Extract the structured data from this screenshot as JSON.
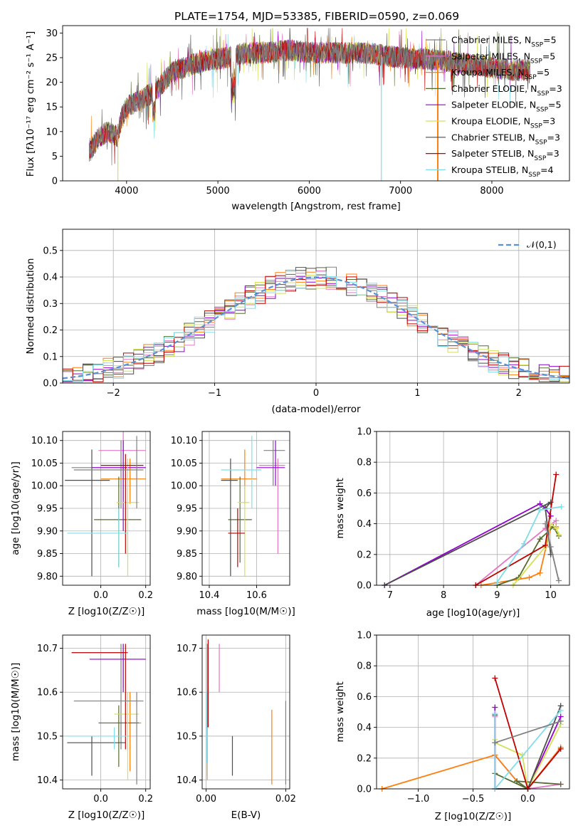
{
  "figure_title": "PLATE=1754, MJD=53385, FIBERID=0590, z=0.069",
  "colors": [
    "#808080",
    "#e377c2",
    "#ff7f0e",
    "#556b2f",
    "#9400d3",
    "#d4e157",
    "#4d4d4d",
    "#c00000",
    "#80deea"
  ],
  "series_names": [
    "Chabrier MILES, N_SSP=5",
    "Salpeter MILES, N_SSP=5",
    "Kroupa MILES, N_SSP=5",
    "Chabrier ELODIE, N_SSP=3",
    "Salpeter ELODIE, N_SSP=5",
    "Kroupa ELODIE, N_SSP=3",
    "Chabrier STELIB, N_SSP=3",
    "Salpeter STELIB, N_SSP=3",
    "Kroupa STELIB, N_SSP=4"
  ],
  "chart_data": [
    {
      "id": "spectrum",
      "type": "line",
      "title": "PLATE=1754, MJD=53385, FIBERID=0590, z=0.069",
      "xlabel": "wavelength [Angstrom, rest frame]",
      "ylabel": "Flux [fλ10⁻¹⁷ erg cm⁻² s⁻¹ A⁻¹]",
      "xlim": [
        3300,
        8850
      ],
      "ylim": [
        0,
        31.5
      ],
      "xticks": [
        4000,
        5000,
        6000,
        7000,
        8000
      ],
      "yticks": [
        0,
        5,
        10,
        15,
        20,
        25,
        30
      ],
      "legend_position": "top-right",
      "legend": [
        {
          "base": "Chabrier MILES, N",
          "sub": "SSP",
          "tail": "=5"
        },
        {
          "base": "Salpeter MILES, N",
          "sub": "SSP",
          "tail": "=5"
        },
        {
          "base": "Kroupa MILES, N",
          "sub": "SSP",
          "tail": "=5"
        },
        {
          "base": "Chabrier ELODIE, N",
          "sub": "SSP",
          "tail": "=3"
        },
        {
          "base": "Salpeter ELODIE, N",
          "sub": "SSP",
          "tail": "=5"
        },
        {
          "base": "Kroupa ELODIE, N",
          "sub": "SSP",
          "tail": "=3"
        },
        {
          "base": "Chabrier STELIB, N",
          "sub": "SSP",
          "tail": "=3"
        },
        {
          "base": "Salpeter STELIB, N",
          "sub": "SSP",
          "tail": "=3"
        },
        {
          "base": "Kroupa STELIB, N",
          "sub": "SSP",
          "tail": "=4"
        }
      ],
      "continuum": [
        [
          3600,
          6
        ],
        [
          3700,
          9
        ],
        [
          3800,
          10
        ],
        [
          3900,
          9
        ],
        [
          3950,
          13
        ],
        [
          4000,
          15
        ],
        [
          4100,
          16
        ],
        [
          4200,
          17
        ],
        [
          4300,
          18
        ],
        [
          4400,
          20
        ],
        [
          4500,
          22
        ],
        [
          4700,
          23.5
        ],
        [
          4900,
          24.5
        ],
        [
          5100,
          25
        ],
        [
          5300,
          26
        ],
        [
          5500,
          26
        ],
        [
          5800,
          26.5
        ],
        [
          6000,
          26
        ],
        [
          6300,
          26
        ],
        [
          6600,
          26
        ],
        [
          6800,
          25.5
        ],
        [
          7000,
          25
        ],
        [
          7400,
          24.5
        ],
        [
          7800,
          23.5
        ],
        [
          8200,
          22.5
        ],
        [
          8400,
          22.5
        ]
      ]
    },
    {
      "id": "residuals",
      "type": "bar",
      "xlabel": "(data-model)/error",
      "ylabel": "Normed distribution",
      "xlim": [
        -2.5,
        2.5
      ],
      "ylim": [
        0,
        0.58
      ],
      "xticks": [
        -2,
        -1,
        0,
        1,
        2
      ],
      "yticks": [
        0.0,
        0.1,
        0.2,
        0.3,
        0.4,
        0.5
      ],
      "legend": "𝒩(0,1)",
      "legend_position": "top-right",
      "overlay": "gaussian N(0,1)"
    },
    {
      "id": "age_vs_Z",
      "type": "scatter",
      "xlabel": "Z [log10(Z/Z☉)]",
      "ylabel": "age  [log10(age/yr)]",
      "xlim": [
        -0.17,
        0.22
      ],
      "ylim": [
        9.78,
        10.12
      ],
      "xticks": [
        0.0,
        0.2
      ],
      "yticks": [
        9.8,
        9.85,
        9.9,
        9.95,
        10.0,
        10.05,
        10.1
      ],
      "points": [
        {
          "x": 0.09,
          "y": 10.04,
          "xlo": -0.13,
          "xhi": 0.2,
          "ylo": 9.95,
          "yhi": 10.1
        },
        {
          "x": 0.1,
          "y": 10.078,
          "xlo": -0.01,
          "xhi": 0.2,
          "ylo": 9.97,
          "yhi": 10.12
        },
        {
          "x": 0.13,
          "y": 10.015,
          "xlo": 0.0,
          "xhi": 0.2,
          "ylo": 9.96,
          "yhi": 10.06
        },
        {
          "x": 0.08,
          "y": 9.925,
          "xlo": -0.03,
          "xhi": 0.18,
          "ylo": 9.82,
          "yhi": 10.02
        },
        {
          "x": 0.1,
          "y": 10.04,
          "xlo": -0.04,
          "xhi": 0.2,
          "ylo": 9.9,
          "yhi": 10.1
        },
        {
          "x": 0.12,
          "y": 9.963,
          "xlo": 0.07,
          "xhi": 0.17,
          "ylo": 9.8,
          "yhi": 10.06
        },
        {
          "x": -0.04,
          "y": 10.012,
          "xlo": -0.16,
          "xhi": 0.04,
          "ylo": 9.8,
          "yhi": 10.08
        },
        {
          "x": 0.11,
          "y": 10.045,
          "xlo": 0.0,
          "xhi": 0.19,
          "ylo": 9.85,
          "yhi": 10.07
        },
        {
          "x": 0.08,
          "y": 9.895,
          "xlo": -0.15,
          "xhi": 0.12,
          "ylo": 9.82,
          "yhi": 9.95
        },
        {
          "x": 0.16,
          "y": 10.035,
          "xlo": -0.12,
          "xhi": 0.19,
          "ylo": 9.95,
          "yhi": 10.11
        }
      ]
    },
    {
      "id": "age_vs_mass",
      "type": "scatter",
      "xlabel": "mass [log10(M/M☉)]",
      "ylabel": "",
      "xlim": [
        10.37,
        10.74
      ],
      "ylim": [
        9.78,
        10.12
      ],
      "xticks": [
        10.4,
        10.6
      ],
      "yticks": [
        9.8,
        9.85,
        9.9,
        9.95,
        10.0,
        10.05,
        10.1
      ],
      "points": [
        {
          "x": 10.67,
          "y": 10.078,
          "xlo": 10.63,
          "xhi": 10.72,
          "ylo": 10.0,
          "yhi": 10.1
        },
        {
          "x": 10.69,
          "y": 10.045,
          "xlo": 10.61,
          "xhi": 10.72,
          "ylo": 9.85,
          "yhi": 10.06
        },
        {
          "x": 10.55,
          "y": 10.015,
          "xlo": 10.45,
          "xhi": 10.6,
          "ylo": 9.96,
          "yhi": 10.08
        },
        {
          "x": 10.53,
          "y": 9.925,
          "xlo": 10.48,
          "xhi": 10.58,
          "ylo": 9.83,
          "yhi": 10.02
        },
        {
          "x": 10.68,
          "y": 10.04,
          "xlo": 10.6,
          "xhi": 10.72,
          "ylo": 10.0,
          "yhi": 10.1
        },
        {
          "x": 10.55,
          "y": 9.963,
          "xlo": 10.52,
          "xhi": 10.57,
          "ylo": 9.8,
          "yhi": 10.0
        },
        {
          "x": 10.49,
          "y": 10.012,
          "xlo": 10.45,
          "xhi": 10.52,
          "ylo": 9.8,
          "yhi": 10.06
        },
        {
          "x": 10.52,
          "y": 9.895,
          "xlo": 10.48,
          "xhi": 10.55,
          "ylo": 9.82,
          "yhi": 9.95
        },
        {
          "x": 10.58,
          "y": 10.035,
          "xlo": 10.45,
          "xhi": 10.62,
          "ylo": 9.95,
          "yhi": 10.11
        }
      ]
    },
    {
      "id": "weight_vs_age",
      "type": "line",
      "xlabel": "age  [log10(age/yr)]",
      "ylabel": "mass weight",
      "xlim": [
        6.75,
        10.35
      ],
      "ylim": [
        0,
        1.0
      ],
      "xticks": [
        7,
        8,
        9,
        10
      ],
      "yticks": [
        0.0,
        0.2,
        0.4,
        0.6,
        0.8,
        1.0
      ],
      "series": [
        {
          "name": "",
          "x": [
            8.6,
            9.9,
            10.1
          ],
          "y": [
            0.0,
            0.37,
            0.42
          ]
        },
        {
          "name": "",
          "x": [
            8.7,
            9.6,
            9.8,
            10.0,
            10.1
          ],
          "y": [
            0.0,
            0.05,
            0.08,
            0.38,
            0.38
          ]
        },
        {
          "name": "",
          "x": [
            9.0,
            9.4,
            9.8,
            10.05,
            10.15
          ],
          "y": [
            0.0,
            0.05,
            0.3,
            0.38,
            0.32
          ]
        },
        {
          "name": "",
          "x": [
            6.9,
            9.8,
            9.9,
            10.0
          ],
          "y": [
            0.0,
            0.53,
            0.5,
            0.45
          ]
        },
        {
          "name": "",
          "x": [
            9.3,
            9.9,
            10.0,
            10.1,
            10.15
          ],
          "y": [
            0.0,
            0.25,
            0.4,
            0.37,
            0.33
          ]
        },
        {
          "name": "",
          "x": [
            6.9,
            10.0,
            9.9,
            10.0
          ],
          "y": [
            0.0,
            0.54,
            0.5,
            0.2
          ]
        },
        {
          "name": "",
          "x": [
            8.6,
            9.9,
            10.1
          ],
          "y": [
            0.0,
            0.26,
            0.72
          ]
        },
        {
          "name": "",
          "x": [
            9.0,
            9.5,
            9.8,
            10.2
          ],
          "y": [
            0.02,
            0.27,
            0.49,
            0.51
          ]
        },
        {
          "name": "",
          "x": [
            9.9,
            10.0,
            10.15
          ],
          "y": [
            0.4,
            0.25,
            0.03
          ]
        }
      ]
    },
    {
      "id": "mass_vs_Z",
      "type": "scatter",
      "xlabel": "Z [log10(Z/Z☉)]",
      "ylabel": "mass [log10(M/M☉)]",
      "xlim": [
        -0.17,
        0.22
      ],
      "ylim": [
        10.38,
        10.73
      ],
      "xticks": [
        0.0,
        0.2
      ],
      "yticks": [
        10.4,
        10.5,
        10.6,
        10.7
      ],
      "points": [
        {
          "x": 0.09,
          "y": 10.69,
          "xlo": -0.13,
          "xhi": 0.1,
          "ylo": 10.47,
          "yhi": 10.71
        },
        {
          "x": 0.1,
          "y": 10.675,
          "xlo": -0.01,
          "xhi": 0.2,
          "ylo": 10.61,
          "yhi": 10.71
        },
        {
          "x": 0.13,
          "y": 10.53,
          "xlo": 0.07,
          "xhi": 0.18,
          "ylo": 10.42,
          "yhi": 10.6
        },
        {
          "x": 0.08,
          "y": 10.53,
          "xlo": -0.01,
          "xhi": 0.17,
          "ylo": 10.43,
          "yhi": 10.57
        },
        {
          "x": 0.1,
          "y": 10.675,
          "xlo": -0.05,
          "xhi": 0.2,
          "ylo": 10.6,
          "yhi": 10.71
        },
        {
          "x": 0.12,
          "y": 10.55,
          "xlo": 0.06,
          "xhi": 0.17,
          "ylo": 10.4,
          "yhi": 10.6
        },
        {
          "x": -0.04,
          "y": 10.485,
          "xlo": -0.15,
          "xhi": 0.11,
          "ylo": 10.41,
          "yhi": 10.5
        },
        {
          "x": 0.11,
          "y": 10.69,
          "xlo": -0.13,
          "xhi": 0.12,
          "ylo": 10.47,
          "yhi": 10.71
        },
        {
          "x": 0.06,
          "y": 10.5,
          "xlo": -0.16,
          "xhi": 0.12,
          "ylo": 10.47,
          "yhi": 10.52
        },
        {
          "x": 0.16,
          "y": 10.58,
          "xlo": -0.12,
          "xhi": 0.19,
          "ylo": 10.39,
          "yhi": 10.6
        }
      ]
    },
    {
      "id": "mass_vs_EBV",
      "type": "scatter",
      "xlabel": "E(B-V)",
      "ylabel": "",
      "xlim": [
        -0.001,
        0.021
      ],
      "ylim": [
        10.38,
        10.73
      ],
      "xticks": [
        0.0,
        0.02
      ],
      "yticks": [
        10.4,
        10.5,
        10.6,
        10.7
      ],
      "segments": [
        {
          "x": 0.0003,
          "ylo": 10.44,
          "yhi": 10.71
        },
        {
          "x": 0.0033,
          "ylo": 10.6,
          "yhi": 10.71
        },
        {
          "x": 0.0165,
          "ylo": 10.39,
          "yhi": 10.56
        },
        {
          "x": 0.0003,
          "ylo": 10.41,
          "yhi": 10.5
        },
        {
          "x": 0.0003,
          "ylo": 10.4,
          "yhi": 10.6
        },
        {
          "x": 0.0003,
          "ylo": 10.4,
          "yhi": 10.52
        },
        {
          "x": 0.0066,
          "ylo": 10.41,
          "yhi": 10.5
        },
        {
          "x": 0.0005,
          "ylo": 10.52,
          "yhi": 10.72
        },
        {
          "x": 0.0002,
          "ylo": 10.44,
          "yhi": 10.6
        },
        {
          "x": 0.02,
          "ylo": 10.39,
          "yhi": 10.58
        }
      ]
    },
    {
      "id": "weight_vs_Z",
      "type": "line",
      "xlabel": "Z [log10(Z/Z☉)]",
      "ylabel": "mass weight",
      "xlim": [
        -1.38,
        0.38
      ],
      "ylim": [
        0,
        1.0
      ],
      "xticks": [
        -1.0,
        -0.5,
        0.0
      ],
      "yticks": [
        0.0,
        0.2,
        0.4,
        0.6,
        0.8,
        1.0
      ],
      "series": [
        {
          "name": "",
          "x": [
            -0.3,
            -0.3,
            -0.1,
            0.0,
            0.3
          ],
          "y": [
            0.47,
            0.22,
            0.05,
            0.0,
            0.03
          ]
        },
        {
          "name": "",
          "x": [
            -1.33,
            -0.3,
            -0.1,
            0.0,
            0.3
          ],
          "y": [
            0.0,
            0.22,
            0.05,
            0.0,
            0.27
          ]
        },
        {
          "name": "",
          "x": [
            -0.3,
            0.0,
            -0.1,
            0.3
          ],
          "y": [
            0.1,
            0.0,
            0.05,
            0.03
          ]
        },
        {
          "name": "",
          "x": [
            -0.3,
            -0.3,
            0.0,
            0.3
          ],
          "y": [
            0.53,
            0.0,
            0.0,
            0.47
          ]
        },
        {
          "name": "",
          "x": [
            -0.3,
            -0.3,
            -0.05,
            0.0,
            0.3
          ],
          "y": [
            0.32,
            0.3,
            0.22,
            0.0,
            0.42
          ]
        },
        {
          "name": "",
          "x": [
            -0.3,
            -0.3,
            0.0,
            0.3
          ],
          "y": [
            0.48,
            0.0,
            0.0,
            0.54
          ]
        },
        {
          "name": "",
          "x": [
            -0.3,
            0.0,
            0.3
          ],
          "y": [
            0.72,
            0.0,
            0.26
          ]
        },
        {
          "name": "",
          "x": [
            -0.3,
            -0.3,
            0.3
          ],
          "y": [
            0.49,
            0.0,
            0.51
          ]
        },
        {
          "name": "",
          "x": [
            -0.3,
            0.3
          ],
          "y": [
            0.3,
            0.44
          ]
        }
      ]
    }
  ]
}
